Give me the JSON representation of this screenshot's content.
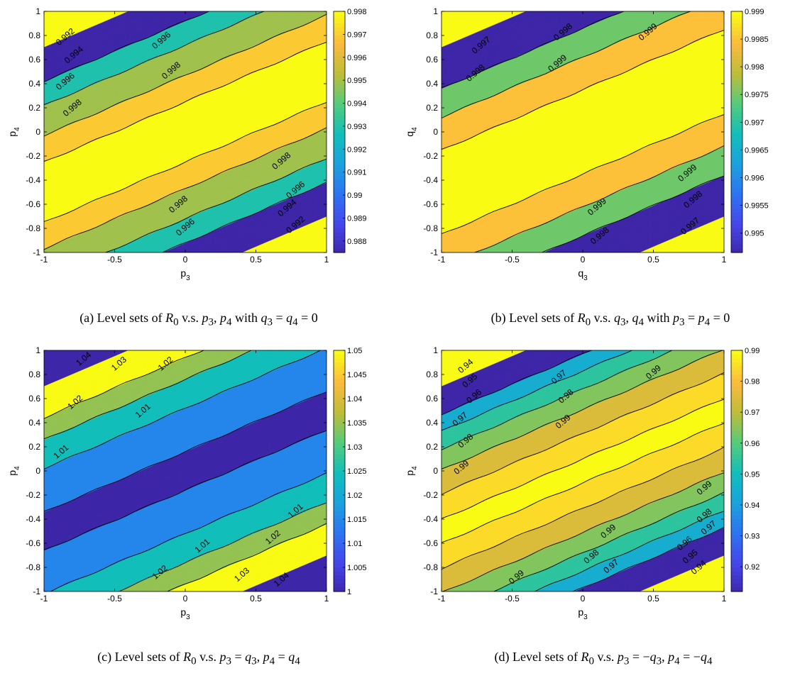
{
  "chart_data": [
    {
      "type": "contour",
      "panel": "a",
      "xlabel_base": "p",
      "xlabel_sub": "3",
      "ylabel_base": "p",
      "ylabel_sub": "4",
      "xlim": [
        -1,
        1
      ],
      "ylim": [
        -1,
        1
      ],
      "xticks": [
        "-1",
        "-0.5",
        "0",
        "0.5",
        "1"
      ],
      "yticks": [
        "-1",
        "-0.8",
        "-0.6",
        "-0.4",
        "-0.2",
        "0",
        "0.2",
        "0.4",
        "0.6",
        "0.8",
        "1"
      ],
      "colorbar_ticks": [
        "0.998",
        "0.997",
        "0.996",
        "0.995",
        "0.994",
        "0.993",
        "0.992",
        "0.991",
        "0.99",
        "0.989",
        "0.988"
      ],
      "colorbar_range": [
        0.9875,
        0.998
      ],
      "contour_levels": [
        0.992,
        0.994,
        0.996,
        0.998
      ],
      "contour_labels": [
        {
          "text": "0.992",
          "x": -0.85,
          "y": 0.79
        },
        {
          "text": "0.994",
          "x": -0.79,
          "y": 0.64
        },
        {
          "text": "0.996",
          "x": -0.85,
          "y": 0.42
        },
        {
          "text": "0.998",
          "x": -0.8,
          "y": 0.2
        },
        {
          "text": "0.996",
          "x": -0.17,
          "y": 0.76
        },
        {
          "text": "0.998",
          "x": -0.1,
          "y": 0.51
        },
        {
          "text": "0.998",
          "x": 0.68,
          "y": -0.24
        },
        {
          "text": "0.996",
          "x": 0.78,
          "y": -0.48
        },
        {
          "text": "0.994",
          "x": 0.72,
          "y": -0.63
        },
        {
          "text": "0.992",
          "x": 0.78,
          "y": -0.77
        },
        {
          "text": "0.998",
          "x": -0.05,
          "y": -0.6
        },
        {
          "text": "0.996",
          "x": 0.0,
          "y": -0.79
        }
      ],
      "caption_prefix": "(a) Level sets of",
      "caption_vs": "v.s.",
      "caption_vars": "p3, p4",
      "caption_with": "with",
      "caption_cond": "q3 = q4 = 0"
    },
    {
      "type": "contour",
      "panel": "b",
      "xlabel_base": "q",
      "xlabel_sub": "3",
      "ylabel_base": "q",
      "ylabel_sub": "4",
      "xlim": [
        -1,
        1
      ],
      "ylim": [
        -1,
        1
      ],
      "xticks": [
        "-1",
        "-0.5",
        "0",
        "0.5",
        "1"
      ],
      "yticks": [
        "-1",
        "-0.8",
        "-0.6",
        "-0.4",
        "-0.2",
        "0",
        "0.2",
        "0.4",
        "0.6",
        "0.8",
        "1"
      ],
      "colorbar_ticks": [
        "0.999",
        "0.9985",
        "0.998",
        "0.9975",
        "0.997",
        "0.9965",
        "0.996",
        "0.9955",
        "0.995"
      ],
      "colorbar_range": [
        0.99465,
        0.999
      ],
      "contour_levels": [
        0.997,
        0.998,
        0.999
      ],
      "contour_labels": [
        {
          "text": "0.997",
          "x": -0.72,
          "y": 0.72
        },
        {
          "text": "0.998",
          "x": -0.76,
          "y": 0.49
        },
        {
          "text": "0.998",
          "x": -0.14,
          "y": 0.83
        },
        {
          "text": "0.999",
          "x": -0.18,
          "y": 0.57
        },
        {
          "text": "0.999",
          "x": 0.46,
          "y": 0.83
        },
        {
          "text": "0.999",
          "x": 0.74,
          "y": -0.34
        },
        {
          "text": "0.998",
          "x": 0.78,
          "y": -0.56
        },
        {
          "text": "0.997",
          "x": 0.76,
          "y": -0.78
        },
        {
          "text": "0.999",
          "x": 0.1,
          "y": -0.62
        },
        {
          "text": "0.998",
          "x": 0.12,
          "y": -0.86
        }
      ],
      "caption_prefix": "(b) Level sets of",
      "caption_vs": "v.s.",
      "caption_vars": "q3, q4",
      "caption_with": "with",
      "caption_cond": "p3 = p4 = 0"
    },
    {
      "type": "contour",
      "panel": "c",
      "xlabel_base": "p",
      "xlabel_sub": "3",
      "ylabel_base": "p",
      "ylabel_sub": "4",
      "xlim": [
        -1,
        1
      ],
      "ylim": [
        -1,
        1
      ],
      "xticks": [
        "-1",
        "-0.5",
        "0",
        "0.5",
        "1"
      ],
      "yticks": [
        "-1",
        "-0.8",
        "-0.6",
        "-0.4",
        "-0.2",
        "0",
        "0.2",
        "0.4",
        "0.6",
        "0.8",
        "1"
      ],
      "colorbar_ticks": [
        "1.05",
        "1.045",
        "1.04",
        "1.035",
        "1.03",
        "1.025",
        "1.02",
        "1.015",
        "1.01",
        "1.005",
        "1"
      ],
      "colorbar_range": [
        1.0,
        1.05
      ],
      "contour_levels": [
        1.01,
        1.02,
        1.03,
        1.04
      ],
      "contour_labels": [
        {
          "text": "1.04",
          "x": -0.72,
          "y": 0.93
        },
        {
          "text": "1.03",
          "x": -0.47,
          "y": 0.89
        },
        {
          "text": "1.02",
          "x": -0.14,
          "y": 0.89
        },
        {
          "text": "1.02",
          "x": -0.78,
          "y": 0.57
        },
        {
          "text": "1.01",
          "x": -0.3,
          "y": 0.5
        },
        {
          "text": "1.01",
          "x": -0.88,
          "y": 0.16
        },
        {
          "text": "1.01",
          "x": 0.78,
          "y": -0.33
        },
        {
          "text": "1.02",
          "x": 0.62,
          "y": -0.55
        },
        {
          "text": "1.01",
          "x": 0.12,
          "y": -0.62
        },
        {
          "text": "1.02",
          "x": -0.18,
          "y": -0.84
        },
        {
          "text": "1.03",
          "x": 0.4,
          "y": -0.86
        },
        {
          "text": "1.04",
          "x": 0.68,
          "y": -0.9
        }
      ],
      "caption_prefix": "(c) Level sets of",
      "caption_vs": "v.s.",
      "caption_vars": "p3 = q3, p4 = q4",
      "caption_with": "",
      "caption_cond": ""
    },
    {
      "type": "contour",
      "panel": "d",
      "xlabel_base": "p",
      "xlabel_sub": "3",
      "ylabel_base": "p",
      "ylabel_sub": "4",
      "xlim": [
        -1,
        1
      ],
      "ylim": [
        -1,
        1
      ],
      "xticks": [
        "-1",
        "-0.5",
        "0",
        "0.5",
        "1"
      ],
      "yticks": [
        "-1",
        "-0.8",
        "-0.6",
        "-0.4",
        "-0.2",
        "0",
        "0.2",
        "0.4",
        "0.6",
        "0.8",
        "1"
      ],
      "colorbar_ticks": [
        "0.99",
        "0.98",
        "0.97",
        "0.96",
        "0.95",
        "0.94",
        "0.93",
        "0.92"
      ],
      "colorbar_range": [
        0.912,
        0.99
      ],
      "contour_levels": [
        0.94,
        0.95,
        0.96,
        0.97,
        0.98,
        0.99
      ],
      "contour_labels": [
        {
          "text": "0.94",
          "x": -0.83,
          "y": 0.87
        },
        {
          "text": "0.95",
          "x": -0.8,
          "y": 0.75
        },
        {
          "text": "0.96",
          "x": -0.77,
          "y": 0.62
        },
        {
          "text": "0.97",
          "x": -0.87,
          "y": 0.43
        },
        {
          "text": "0.98",
          "x": -0.83,
          "y": 0.25
        },
        {
          "text": "0.99",
          "x": -0.86,
          "y": 0.03
        },
        {
          "text": "0.97",
          "x": -0.17,
          "y": 0.78
        },
        {
          "text": "0.98",
          "x": -0.12,
          "y": 0.62
        },
        {
          "text": "0.99",
          "x": 0.5,
          "y": 0.82
        },
        {
          "text": "0.99",
          "x": -0.14,
          "y": 0.41
        },
        {
          "text": "0.99",
          "x": 0.86,
          "y": -0.14
        },
        {
          "text": "0.98",
          "x": 0.86,
          "y": -0.37
        },
        {
          "text": "0.97",
          "x": 0.89,
          "y": -0.47
        },
        {
          "text": "0.96",
          "x": 0.72,
          "y": -0.6
        },
        {
          "text": "0.95",
          "x": 0.76,
          "y": -0.71
        },
        {
          "text": "0.94",
          "x": 0.82,
          "y": -0.8
        },
        {
          "text": "0.99",
          "x": 0.18,
          "y": -0.5
        },
        {
          "text": "0.98",
          "x": 0.06,
          "y": -0.71
        },
        {
          "text": "0.97",
          "x": 0.2,
          "y": -0.79
        },
        {
          "text": "0.99",
          "x": -0.47,
          "y": -0.88
        }
      ],
      "caption_prefix": "(d) Level sets of",
      "caption_vs": "v.s.",
      "caption_vars": "p3 = −q3, p4 = −q4",
      "caption_with": "",
      "caption_cond": ""
    }
  ]
}
